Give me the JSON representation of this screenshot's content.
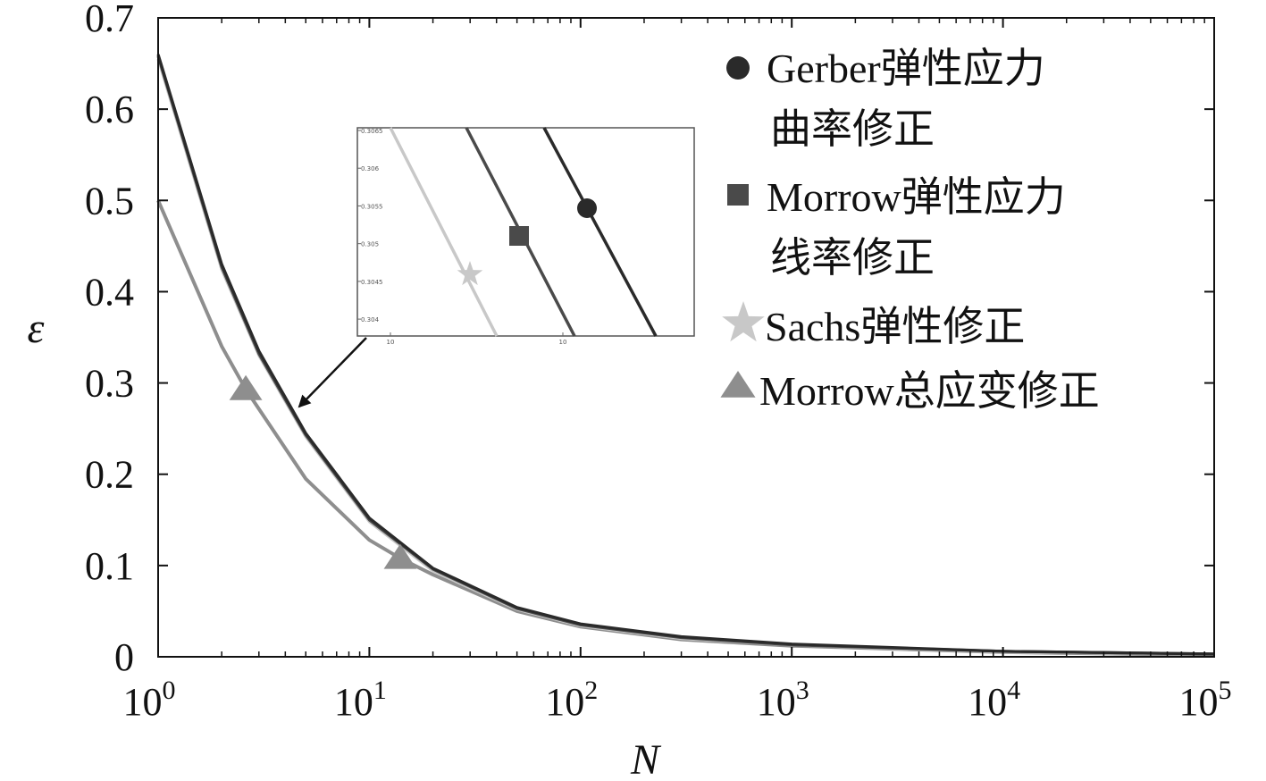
{
  "chart_data": {
    "type": "line",
    "xlabel": "N",
    "ylabel": "ε",
    "x_scale": "log",
    "xlim": [
      1,
      100000
    ],
    "ylim": [
      0,
      0.7
    ],
    "x_ticks": [
      {
        "base": "10",
        "exp": "0",
        "value": 1
      },
      {
        "base": "10",
        "exp": "1",
        "value": 10
      },
      {
        "base": "10",
        "exp": "2",
        "value": 100
      },
      {
        "base": "10",
        "exp": "3",
        "value": 1000
      },
      {
        "base": "10",
        "exp": "4",
        "value": 10000
      },
      {
        "base": "10",
        "exp": "5",
        "value": 100000
      }
    ],
    "y_ticks": [
      {
        "label": "0",
        "value": 0
      },
      {
        "label": "0.1",
        "value": 0.1
      },
      {
        "label": "0.2",
        "value": 0.2
      },
      {
        "label": "0.3",
        "value": 0.3
      },
      {
        "label": "0.4",
        "value": 0.4
      },
      {
        "label": "0.5",
        "value": 0.5
      },
      {
        "label": "0.6",
        "value": 0.6
      },
      {
        "label": "0.7",
        "value": 0.7
      }
    ],
    "series": [
      {
        "name": "Gerber弹性应力曲率修正",
        "legend_lines": [
          "Gerber弹性应力",
          "曲率修正"
        ],
        "marker": "circle",
        "color": "#2a2a2a",
        "x": [
          1,
          2,
          3,
          5,
          10,
          20,
          50,
          100,
          300,
          1000,
          10000,
          100000
        ],
        "y": [
          0.66,
          0.43,
          0.335,
          0.245,
          0.152,
          0.097,
          0.054,
          0.036,
          0.022,
          0.014,
          0.006,
          0.003
        ]
      },
      {
        "name": "Morrow弹性应力线率修正",
        "legend_lines": [
          "Morrow弹性应力",
          "线率修正"
        ],
        "marker": "square",
        "color": "#4a4a4a",
        "x": [
          1,
          2,
          3,
          5,
          10,
          20,
          50,
          100,
          300,
          1000,
          10000,
          100000
        ],
        "y": [
          0.658,
          0.427,
          0.332,
          0.243,
          0.15,
          0.096,
          0.053,
          0.035,
          0.021,
          0.013,
          0.006,
          0.003
        ]
      },
      {
        "name": "Sachs弹性修正",
        "legend_lines": [
          "Sachs弹性修正"
        ],
        "marker": "star",
        "color": "#c8c8c8",
        "x": [
          1,
          2,
          3,
          5,
          10,
          20,
          50,
          100,
          300,
          1000,
          10000,
          100000
        ],
        "y": [
          0.655,
          0.424,
          0.33,
          0.241,
          0.148,
          0.094,
          0.052,
          0.034,
          0.02,
          0.013,
          0.005,
          0.003
        ]
      },
      {
        "name": "Morrow总应变修正",
        "legend_lines": [
          "Morrow总应变修正"
        ],
        "marker": "triangle",
        "color": "#8e8e8e",
        "x": [
          1,
          2,
          2.6,
          5,
          10,
          14,
          20,
          50,
          100,
          300,
          1000,
          10000,
          100000
        ],
        "y": [
          0.5,
          0.34,
          0.293,
          0.195,
          0.128,
          0.108,
          0.09,
          0.05,
          0.033,
          0.019,
          0.012,
          0.005,
          0.002
        ]
      }
    ],
    "markers": [
      {
        "series": 3,
        "x": 2.6,
        "y": 0.293
      },
      {
        "series": 3,
        "x": 14,
        "y": 0.108
      }
    ],
    "inset": {
      "y_ticks": [
        "0.3065",
        "0.306",
        "0.3055",
        "0.305",
        "0.3045",
        "0.304"
      ],
      "x_ticks": [
        "10",
        "10"
      ],
      "points": [
        {
          "series": 0,
          "marker": "circle"
        },
        {
          "series": 1,
          "marker": "square"
        },
        {
          "series": 2,
          "marker": "star"
        }
      ]
    },
    "legend_position": "top-right",
    "grid": false
  }
}
